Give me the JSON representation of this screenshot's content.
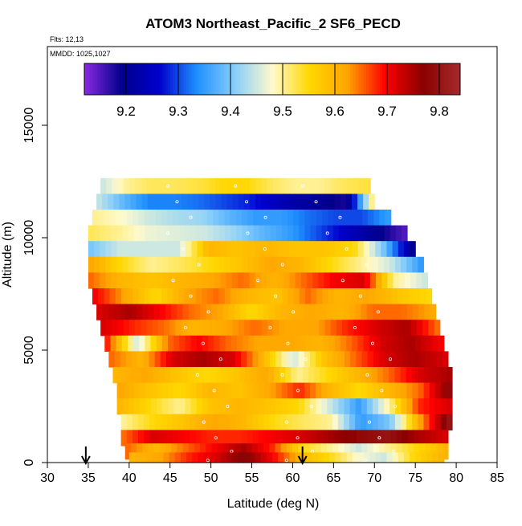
{
  "chart_data": {
    "type": "heatmap",
    "title": "ATOM3 Northeast_Pacific_2 SF6_PECD",
    "flights_label": "Flts: 12,13",
    "dates_label": "MMDD: 1025,1027",
    "xlabel": "Latitude (deg N)",
    "ylabel": "Altitude (m)",
    "xlim": [
      30,
      85
    ],
    "ylim": [
      0,
      18500
    ],
    "x_ticks": [
      30,
      35,
      40,
      45,
      50,
      55,
      60,
      65,
      70,
      75,
      80,
      85
    ],
    "y_ticks": [
      0,
      5000,
      10000,
      15000
    ],
    "colorbar": {
      "range": [
        9.12,
        9.84
      ],
      "ticks": [
        9.2,
        9.3,
        9.4,
        9.5,
        9.6,
        9.7,
        9.8
      ],
      "colors": [
        "#8a2be2",
        "#00008b",
        "#0000cd",
        "#1e90ff",
        "#87cefa",
        "#fffacd",
        "#ffd700",
        "#ffa500",
        "#ff0000",
        "#8b0000",
        "#a52a2a"
      ]
    },
    "arrows_latitude": [
      34.7,
      61.2
    ],
    "rows": [
      {
        "alt": 12300,
        "lat_start": 36.5,
        "lat_end": 69.5,
        "values": [
          9.45,
          9.5,
          9.52,
          9.52,
          9.53,
          9.55,
          9.55,
          9.52,
          9.5,
          9.5,
          9.52,
          9.53
        ]
      },
      {
        "alt": 11600,
        "lat_start": 36.0,
        "lat_end": 70.0,
        "values": [
          9.44,
          9.38,
          9.33,
          9.33,
          9.32,
          9.3,
          9.28,
          9.25,
          9.22,
          9.2,
          9.18,
          9.5
        ]
      },
      {
        "alt": 10900,
        "lat_start": 35.5,
        "lat_end": 72.0,
        "values": [
          9.5,
          9.48,
          9.45,
          9.43,
          9.42,
          9.38,
          9.35,
          9.35,
          9.32,
          9.3,
          9.3,
          9.35
        ]
      },
      {
        "alt": 10200,
        "lat_start": 35.0,
        "lat_end": 74.0,
        "values": [
          9.52,
          9.5,
          9.47,
          9.46,
          9.45,
          9.42,
          9.38,
          9.35,
          9.3,
          9.25,
          9.2,
          9.15
        ]
      },
      {
        "alt": 9500,
        "lat_start": 35.0,
        "lat_end": 75.0,
        "values": [
          9.4,
          9.45,
          9.45,
          9.45,
          9.6,
          9.58,
          9.6,
          9.58,
          9.58,
          9.55,
          9.4,
          9.2
        ]
      },
      {
        "alt": 8800,
        "lat_start": 35.0,
        "lat_end": 76.0,
        "values": [
          9.62,
          9.55,
          9.5,
          9.52,
          9.55,
          9.58,
          9.62,
          9.6,
          9.55,
          9.5,
          9.45,
          9.35
        ]
      },
      {
        "alt": 8100,
        "lat_start": 35.0,
        "lat_end": 76.5,
        "values": [
          9.65,
          9.6,
          9.58,
          9.6,
          9.62,
          9.65,
          9.6,
          9.65,
          9.7,
          9.72,
          9.5,
          9.45
        ]
      },
      {
        "alt": 7400,
        "lat_start": 35.5,
        "lat_end": 77.0,
        "values": [
          9.7,
          9.62,
          9.55,
          9.62,
          9.65,
          9.6,
          9.58,
          9.65,
          9.6,
          9.62,
          9.58,
          9.55
        ]
      },
      {
        "alt": 6700,
        "lat_start": 36.0,
        "lat_end": 77.5,
        "values": [
          9.72,
          9.75,
          9.7,
          9.65,
          9.62,
          9.55,
          9.6,
          9.62,
          9.6,
          9.65,
          9.65,
          9.62
        ]
      },
      {
        "alt": 6000,
        "lat_start": 36.5,
        "lat_end": 78.0,
        "values": [
          9.72,
          9.68,
          9.65,
          9.6,
          9.62,
          9.65,
          9.62,
          9.62,
          9.68,
          9.72,
          9.75,
          9.65
        ]
      },
      {
        "alt": 5300,
        "lat_start": 37.0,
        "lat_end": 78.5,
        "values": [
          9.68,
          9.45,
          9.65,
          9.7,
          9.65,
          9.62,
          9.62,
          9.6,
          9.65,
          9.72,
          9.75,
          9.7
        ]
      },
      {
        "alt": 4600,
        "lat_start": 37.5,
        "lat_end": 79.0,
        "values": [
          9.65,
          9.6,
          9.72,
          9.75,
          9.72,
          9.6,
          9.45,
          9.58,
          9.65,
          9.72,
          9.75,
          9.72
        ]
      },
      {
        "alt": 3900,
        "lat_start": 38.0,
        "lat_end": 79.5,
        "values": [
          9.6,
          9.62,
          9.58,
          9.55,
          9.58,
          9.62,
          9.5,
          9.55,
          9.6,
          9.65,
          9.72,
          9.75
        ]
      },
      {
        "alt": 3200,
        "lat_start": 38.5,
        "lat_end": 79.5,
        "values": [
          9.62,
          9.58,
          9.55,
          9.6,
          9.58,
          9.62,
          9.68,
          9.6,
          9.55,
          9.6,
          9.65,
          9.78
        ]
      },
      {
        "alt": 2500,
        "lat_start": 38.5,
        "lat_end": 79.5,
        "values": [
          9.6,
          9.55,
          9.5,
          9.58,
          9.6,
          9.58,
          9.55,
          9.45,
          9.35,
          9.5,
          9.68,
          9.72
        ]
      },
      {
        "alt": 1800,
        "lat_start": 39.0,
        "lat_end": 79.5,
        "values": [
          9.5,
          9.55,
          9.58,
          9.62,
          9.6,
          9.55,
          9.52,
          9.5,
          9.35,
          9.4,
          9.62,
          9.8
        ]
      },
      {
        "alt": 1100,
        "lat_start": 39.0,
        "lat_end": 79.0,
        "values": [
          9.65,
          9.72,
          9.7,
          9.68,
          9.68,
          9.7,
          9.72,
          9.75,
          9.78,
          9.8,
          9.75,
          9.72
        ]
      },
      {
        "alt": 500,
        "lat_start": 39.5,
        "lat_end": 79.0,
        "values": [
          9.65,
          9.6,
          9.65,
          9.7,
          9.75,
          9.68,
          9.55,
          9.5,
          9.45,
          9.5,
          9.55,
          9.6
        ]
      },
      {
        "alt": 100,
        "lat_start": 40.0,
        "lat_end": 78.5,
        "values": [
          9.6,
          9.62,
          9.68,
          9.72,
          9.78,
          9.7,
          9.6,
          9.55,
          9.48,
          9.45,
          9.55,
          9.6
        ]
      }
    ]
  }
}
